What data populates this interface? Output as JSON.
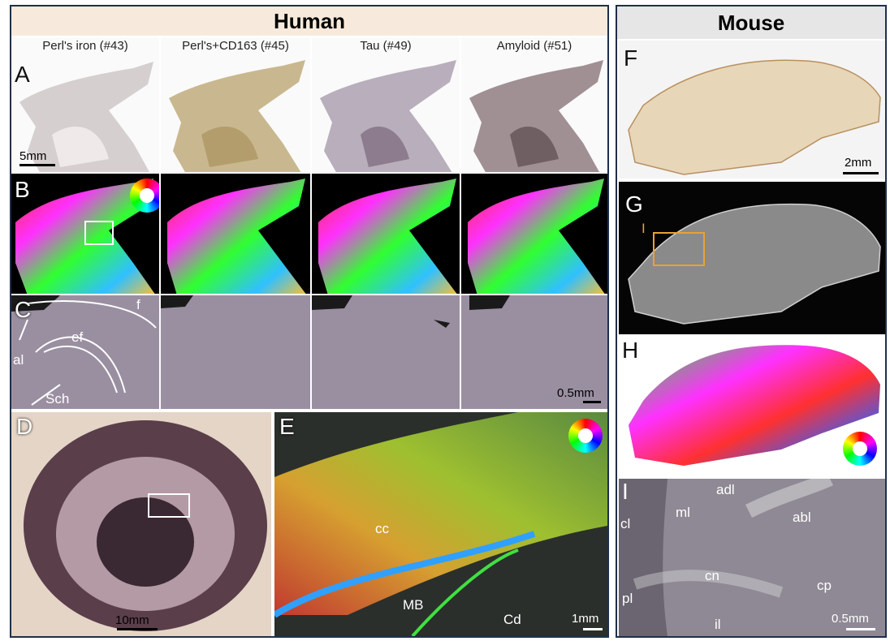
{
  "human": {
    "title": "Human",
    "stains": [
      "Perl's iron (#43)",
      "Perl's+CD163 (#45)",
      "Tau (#49)",
      "Amyloid (#51)"
    ],
    "panel_letters": {
      "A": "A",
      "B": "B",
      "C": "C",
      "D": "D",
      "E": "E"
    },
    "scale_A": "5mm",
    "scale_C": "0.5mm",
    "scale_D": "10mm",
    "scale_E": "1mm",
    "annotations_C": {
      "f": "f",
      "ef": "ef",
      "al": "al",
      "sch": "Sch"
    },
    "annotations_E": {
      "cc": "cc",
      "mb": "MB",
      "cd": "Cd"
    }
  },
  "mouse": {
    "title": "Mouse",
    "panel_letters": {
      "F": "F",
      "G": "G",
      "H": "H",
      "I": "I"
    },
    "scale_F": "2mm",
    "scale_I": "0.5mm",
    "marker_G": "I",
    "annotations_I": {
      "adl": "adl",
      "ml": "ml",
      "abl": "abl",
      "cl": "cl",
      "cn": "cn",
      "cp": "cp",
      "pl": "pl",
      "il": "il"
    }
  },
  "colors": {
    "header_bg_human": "#f7eadc",
    "header_bg_mouse": "#e6e6e6",
    "border": "#1f2f4a",
    "roi_orange": "#e8a233"
  }
}
